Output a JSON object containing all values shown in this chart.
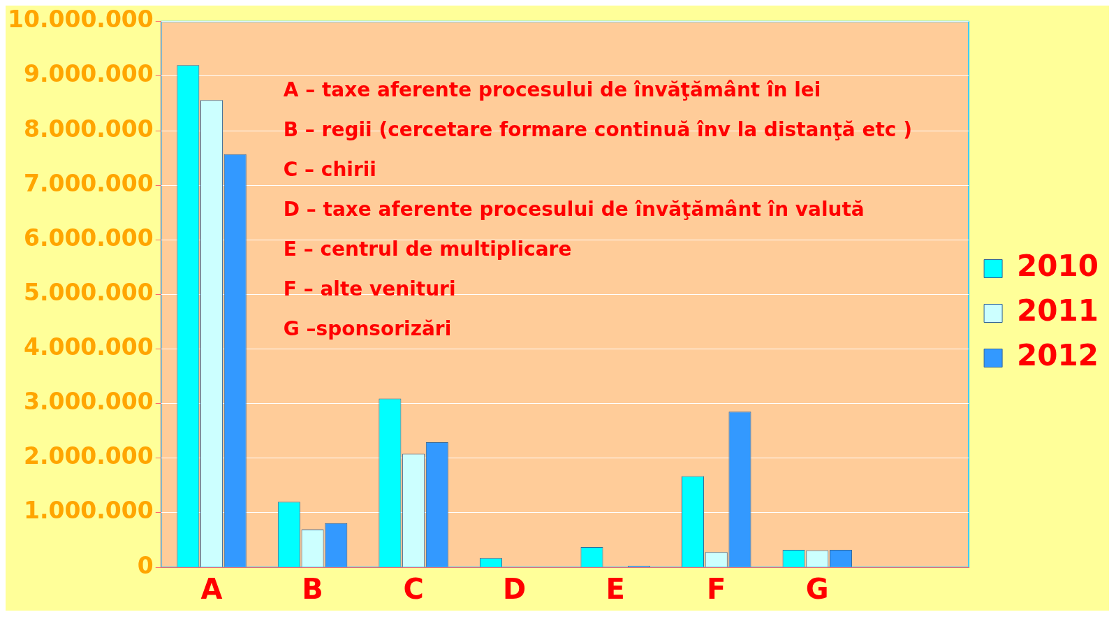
{
  "chart_data": {
    "type": "bar",
    "categories": [
      "A",
      "B",
      "C",
      "D",
      "E",
      "F",
      "G",
      null
    ],
    "series": [
      {
        "name": "2010",
        "color": "#00ffff",
        "values": [
          9200000,
          1200000,
          3090000,
          170000,
          370000,
          1670000,
          320000,
          null
        ]
      },
      {
        "name": "2011",
        "color": "#ccffff",
        "values": [
          8560000,
          690000,
          2080000,
          0,
          0,
          280000,
          310000,
          null
        ]
      },
      {
        "name": "2012",
        "color": "#3399ff",
        "values": [
          7570000,
          810000,
          2290000,
          0,
          30000,
          2850000,
          320000,
          null
        ]
      }
    ],
    "ylim": [
      0,
      10000000
    ],
    "yticks": [
      {
        "value": 0,
        "label": "0"
      },
      {
        "value": 1000000,
        "label": "1.000.000"
      },
      {
        "value": 2000000,
        "label": "2.000.000"
      },
      {
        "value": 3000000,
        "label": "3.000.000"
      },
      {
        "value": 4000000,
        "label": "4.000.000"
      },
      {
        "value": 5000000,
        "label": "5.000.000"
      },
      {
        "value": 6000000,
        "label": "6.000.000"
      },
      {
        "value": 7000000,
        "label": "7.000.000"
      },
      {
        "value": 8000000,
        "label": "8.000.000"
      },
      {
        "value": 9000000,
        "label": "9.000.000"
      },
      {
        "value": 10000000,
        "label": "10.000.000"
      }
    ],
    "grid": "y",
    "legend": "right",
    "annotations": [
      "A – taxe aferente procesului de învăţământ în lei",
      "B – regii (cercetare formare continuă înv la distanţă etc )",
      "C – chirii",
      "D – taxe aferente procesului de învăţământ în valută",
      "E – centrul de multiplicare",
      "F – alte venituri",
      "G –sponsorizări"
    ]
  }
}
